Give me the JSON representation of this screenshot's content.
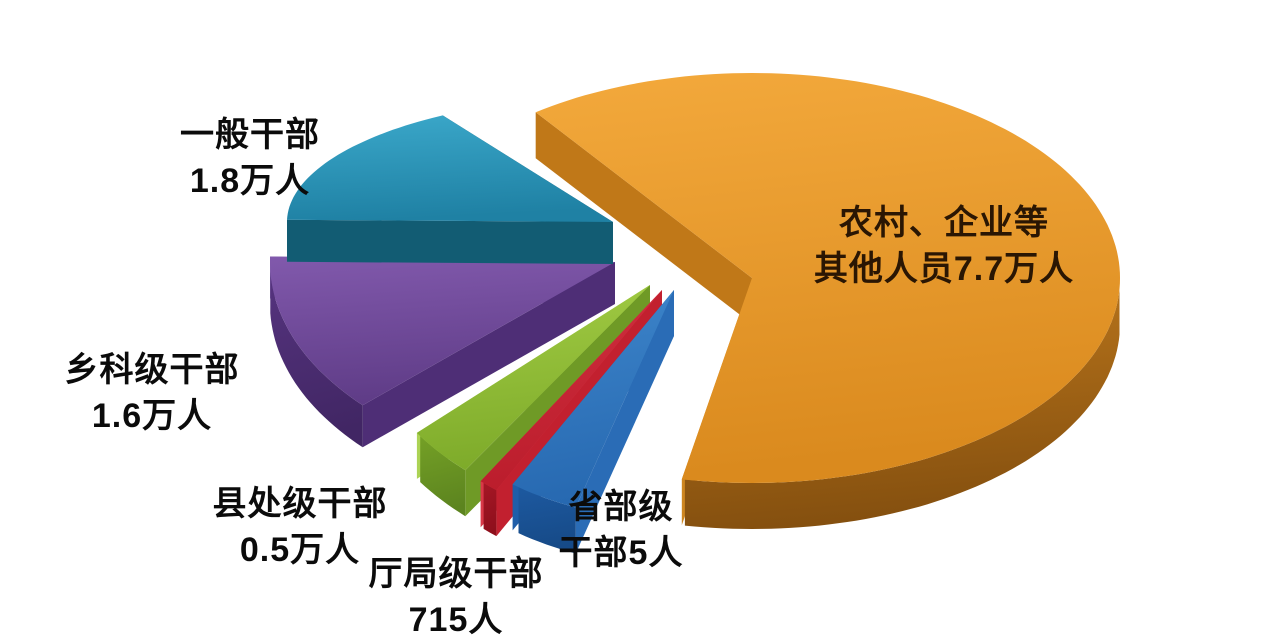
{
  "page": {
    "background": "#FFFFFF",
    "description": "3D exploded pie chart of disciplined/punished personnel by cadre level"
  },
  "chart_data": {
    "type": "pie",
    "style": "3d-exploded-pie",
    "title": "",
    "unit": "人",
    "legend_position": "none",
    "background": "#FFFFFF",
    "label_text_color": "#0B0B0B",
    "on_slice_label_text_color": "#2A1603",
    "slices": [
      {
        "id": "rural-enterprise-others",
        "label": "农村、企业等其他人员",
        "label_lines": [
          "农村、企业等",
          "其他人员7.7万人"
        ],
        "value": 77000,
        "value_display": "7.7万人",
        "label_placement": "on-slice",
        "colors": {
          "top_light": "#F3A93C",
          "top_dark": "#DA8A1E",
          "side_light": "#BC771C",
          "side_dark": "#85500F",
          "edge1": "#C07818",
          "edge2": "#CE8620"
        }
      },
      {
        "id": "general-cadres",
        "label": "一般干部",
        "label_lines": [
          "一般干部",
          "1.8万人"
        ],
        "value": 18000,
        "value_display": "1.8万人",
        "label_placement": "outside-top-left",
        "colors": {
          "top_light": "#3BA8CA",
          "top_dark": "#1F81A4",
          "side_light": "#136079",
          "side_dark": "#0E4C61",
          "edge1": "#125C73",
          "edge2": "#0F5064"
        }
      },
      {
        "id": "township-section-level-cadres",
        "label": "乡科级干部",
        "label_lines": [
          "乡科级干部",
          "1.6万人"
        ],
        "value": 16000,
        "value_display": "1.6万人",
        "label_placement": "outside-left",
        "colors": {
          "top_light": "#8159AC",
          "top_dark": "#5F3C87",
          "side_light": "#56347F",
          "side_dark": "#412664",
          "edge1": "#4E2E76",
          "edge2": "#6A4699"
        }
      },
      {
        "id": "county-division-level-cadres",
        "label": "县处级干部",
        "label_lines": [
          "县处级干部",
          "0.5万人"
        ],
        "value": 5000,
        "value_display": "0.5万人",
        "label_placement": "outside-bottom-left",
        "colors": {
          "top_light": "#A3CD45",
          "top_dark": "#7EAB2A",
          "side_light": "#74A026",
          "side_dark": "#5C841F",
          "edge1": "#6F9A26",
          "edge2": "#ACD355"
        }
      },
      {
        "id": "department-bureau-level-cadres",
        "label": "厅局级干部",
        "label_lines": [
          "厅局级干部",
          "715人"
        ],
        "value": 715,
        "value_display": "715人",
        "label_placement": "outside-bottom",
        "colors": {
          "top_light": "#D12F3F",
          "top_dark": "#BB1D2C",
          "side_light": "#A51725",
          "side_dark": "#8E0F1C",
          "edge1": "#C2202F",
          "edge2": "#D83848"
        }
      },
      {
        "id": "provincial-ministerial-level-cadres",
        "label": "省部级干部",
        "label_lines": [
          "省部级",
          "干部5人"
        ],
        "value": 5,
        "value_display": "5人",
        "label_placement": "outside-bottom-right",
        "colors": {
          "top_light": "#3E86CB",
          "top_dark": "#2769B1",
          "side_light": "#1D59A0",
          "side_dark": "#164A87",
          "edge1": "#2A6CB6",
          "edge2": "#1F5EA9"
        }
      }
    ]
  }
}
